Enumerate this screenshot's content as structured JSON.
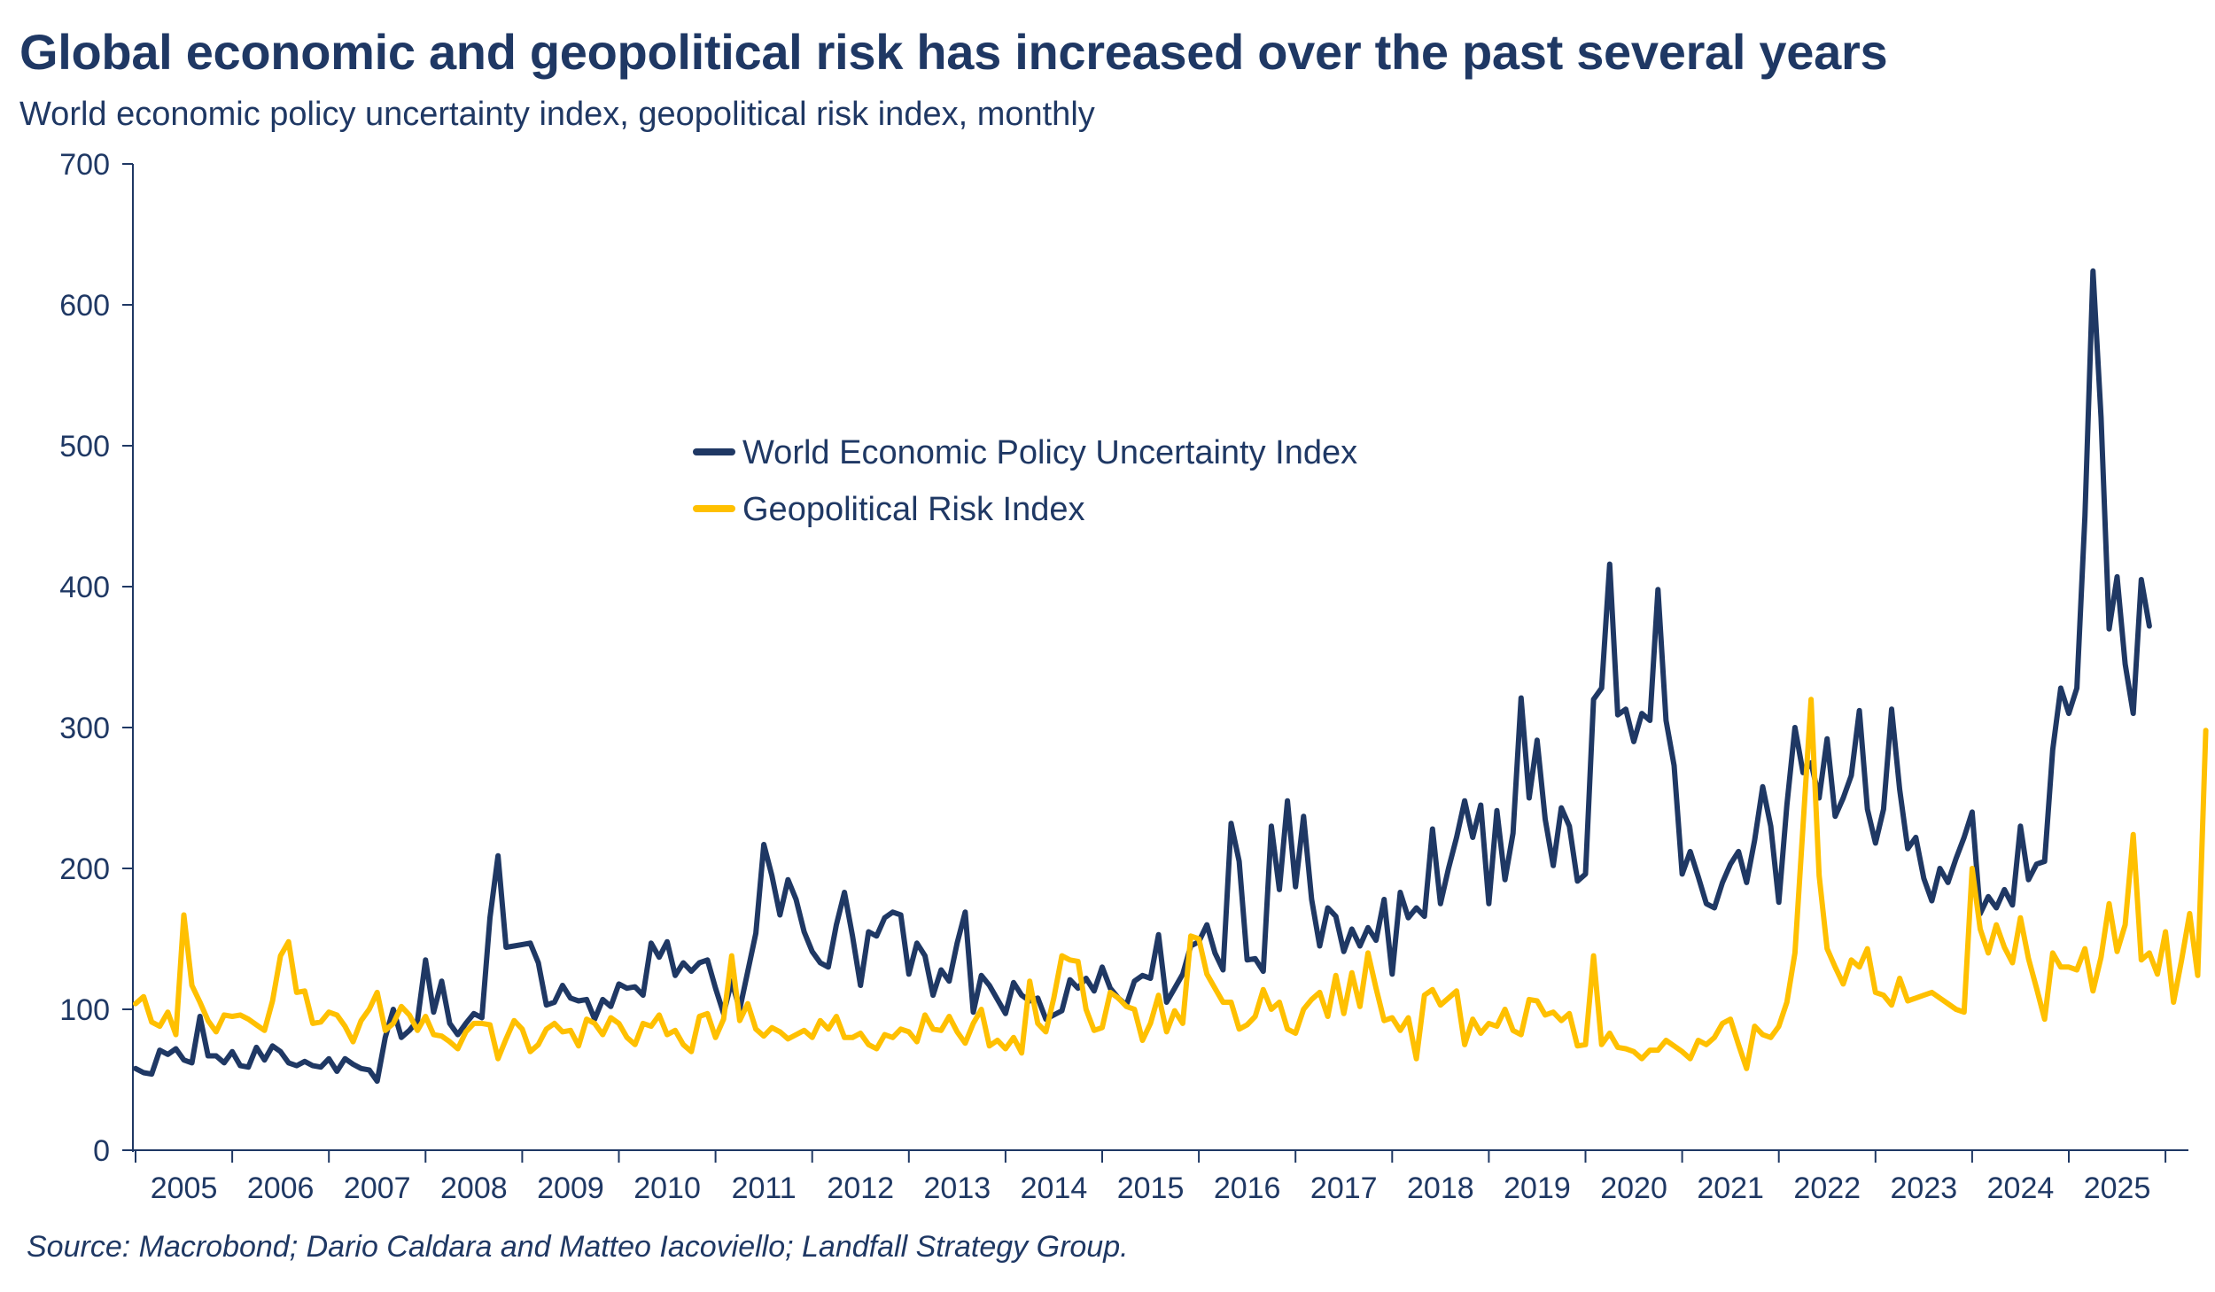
{
  "chart_data": {
    "type": "line",
    "title": "Global economic and geopolitical risk has increased over the past several years",
    "subtitle": "World economic policy uncertainty index, geopolitical risk index, monthly",
    "source": "Source: Macrobond; Dario Caldara and Matteo Iacoviello; Landfall Strategy Group.",
    "xlabel": "",
    "ylabel": "",
    "ylim": [
      0,
      700
    ],
    "yticks": [
      0,
      100,
      200,
      300,
      400,
      500,
      600,
      700
    ],
    "xlim": [
      2005.0,
      2025.83
    ],
    "xticks": [
      "2005",
      "2006",
      "2007",
      "2008",
      "2009",
      "2010",
      "2011",
      "2012",
      "2013",
      "2014",
      "2015",
      "2016",
      "2017",
      "2018",
      "2019",
      "2020",
      "2021",
      "2022",
      "2023",
      "2024",
      "2025"
    ],
    "grid": false,
    "legend": "center",
    "colors": {
      "axis": "#1f3864",
      "epu": "#1f3864",
      "gpr": "#ffc000"
    },
    "series": [
      {
        "name": "World Economic Policy Uncertainty Index",
        "key": "epu",
        "start": 2005.0,
        "step": 0.0833333,
        "values": [
          58,
          55,
          54,
          71,
          68,
          72,
          64,
          62,
          95,
          67,
          67,
          62,
          70,
          60,
          59,
          73,
          64,
          74,
          70,
          62,
          60,
          63,
          60,
          59,
          65,
          56,
          65,
          61,
          58,
          57,
          49,
          80,
          100,
          80,
          85,
          92,
          135,
          98,
          120,
          90,
          82,
          90,
          97,
          94,
          165,
          209,
          144,
          145,
          146,
          147,
          133,
          103,
          105,
          117,
          108,
          106,
          107,
          93,
          107,
          102,
          118,
          115,
          116,
          110,
          147,
          137,
          148,
          124,
          133,
          127,
          133,
          135,
          115,
          97,
          120,
          100,
          127,
          154,
          217,
          195,
          167,
          192,
          178,
          155,
          141,
          133,
          130,
          160,
          183,
          152,
          117,
          155,
          152,
          165,
          169,
          167,
          125,
          147,
          138,
          110,
          128,
          120,
          147,
          169,
          98,
          124,
          117,
          107,
          97,
          119,
          110,
          106,
          108,
          93,
          96,
          99,
          121,
          115,
          122,
          113,
          130,
          115,
          108,
          103,
          120,
          124,
          122,
          153,
          105,
          115,
          125,
          145,
          148,
          160,
          140,
          128,
          232,
          205,
          135,
          136,
          127,
          230,
          185,
          248,
          187,
          237,
          178,
          145,
          172,
          166,
          141,
          157,
          145,
          158,
          149,
          178,
          125,
          183,
          165,
          172,
          166,
          228,
          175,
          200,
          222,
          248,
          222,
          245,
          175,
          241,
          192,
          225,
          321,
          250,
          291,
          235,
          202,
          243,
          230,
          191,
          196,
          320,
          328,
          416,
          309,
          313,
          290,
          310,
          305,
          398,
          305,
          273,
          196,
          212,
          194,
          175,
          172,
          190,
          203,
          212,
          190,
          220,
          258,
          230,
          176,
          245,
          300,
          268,
          275,
          250,
          292,
          237,
          250,
          266,
          312,
          242,
          218,
          242,
          313,
          256,
          214,
          222,
          193,
          177,
          200,
          190,
          207,
          222,
          240,
          168,
          180,
          172,
          185,
          174,
          230,
          192,
          203,
          205,
          284,
          328,
          310,
          328,
          450,
          624,
          520,
          370,
          407,
          345,
          310,
          405,
          372
        ]
      },
      {
        "name": "Geopolitical Risk Index",
        "key": "gpr",
        "start": 2005.0,
        "step": 0.0833333,
        "values": [
          104,
          109,
          91,
          88,
          98,
          82,
          167,
          117,
          105,
          92,
          84,
          96,
          95,
          96,
          93,
          89,
          85,
          106,
          138,
          148,
          112,
          113,
          90,
          91,
          98,
          96,
          88,
          77,
          92,
          100,
          112,
          85,
          90,
          102,
          96,
          85,
          95,
          82,
          81,
          77,
          72,
          84,
          90,
          90,
          89,
          65,
          79,
          92,
          86,
          70,
          75,
          86,
          90,
          84,
          85,
          74,
          93,
          90,
          82,
          94,
          90,
          80,
          75,
          90,
          88,
          96,
          82,
          85,
          75,
          70,
          95,
          97,
          80,
          93,
          138,
          92,
          104,
          86,
          81,
          87,
          84,
          79,
          82,
          85,
          80,
          92,
          86,
          95,
          80,
          80,
          83,
          75,
          72,
          82,
          80,
          86,
          84,
          77,
          96,
          86,
          85,
          95,
          84,
          76,
          90,
          100,
          74,
          78,
          72,
          80,
          69,
          120,
          90,
          84,
          108,
          138,
          135,
          134,
          100,
          85,
          87,
          112,
          108,
          102,
          100,
          78,
          90,
          110,
          84,
          99,
          90,
          152,
          150,
          125,
          115,
          105,
          105,
          86,
          89,
          95,
          114,
          100,
          105,
          86,
          83,
          100,
          107,
          112,
          95,
          124,
          97,
          126,
          102,
          140,
          115,
          92,
          94,
          85,
          94,
          65,
          110,
          114,
          103,
          108,
          113,
          75,
          93,
          83,
          90,
          88,
          100,
          85,
          82,
          107,
          106,
          96,
          98,
          92,
          97,
          74,
          75,
          138,
          75,
          83,
          73,
          72,
          70,
          65,
          71,
          71,
          78,
          74,
          70,
          65,
          78,
          75,
          80,
          90,
          93,
          75,
          58,
          88,
          82,
          80,
          88,
          105,
          140,
          230,
          320,
          195,
          143,
          130,
          118,
          135,
          130,
          143,
          112,
          110,
          103,
          122,
          106,
          108,
          110,
          112,
          108,
          104,
          100,
          98,
          200,
          157,
          140,
          160,
          144,
          133,
          165,
          136,
          115,
          93,
          140,
          130,
          130,
          128,
          143,
          113,
          137,
          175,
          141,
          160,
          224,
          135,
          140,
          125,
          155,
          105,
          135,
          168,
          124,
          298
        ]
      }
    ]
  }
}
